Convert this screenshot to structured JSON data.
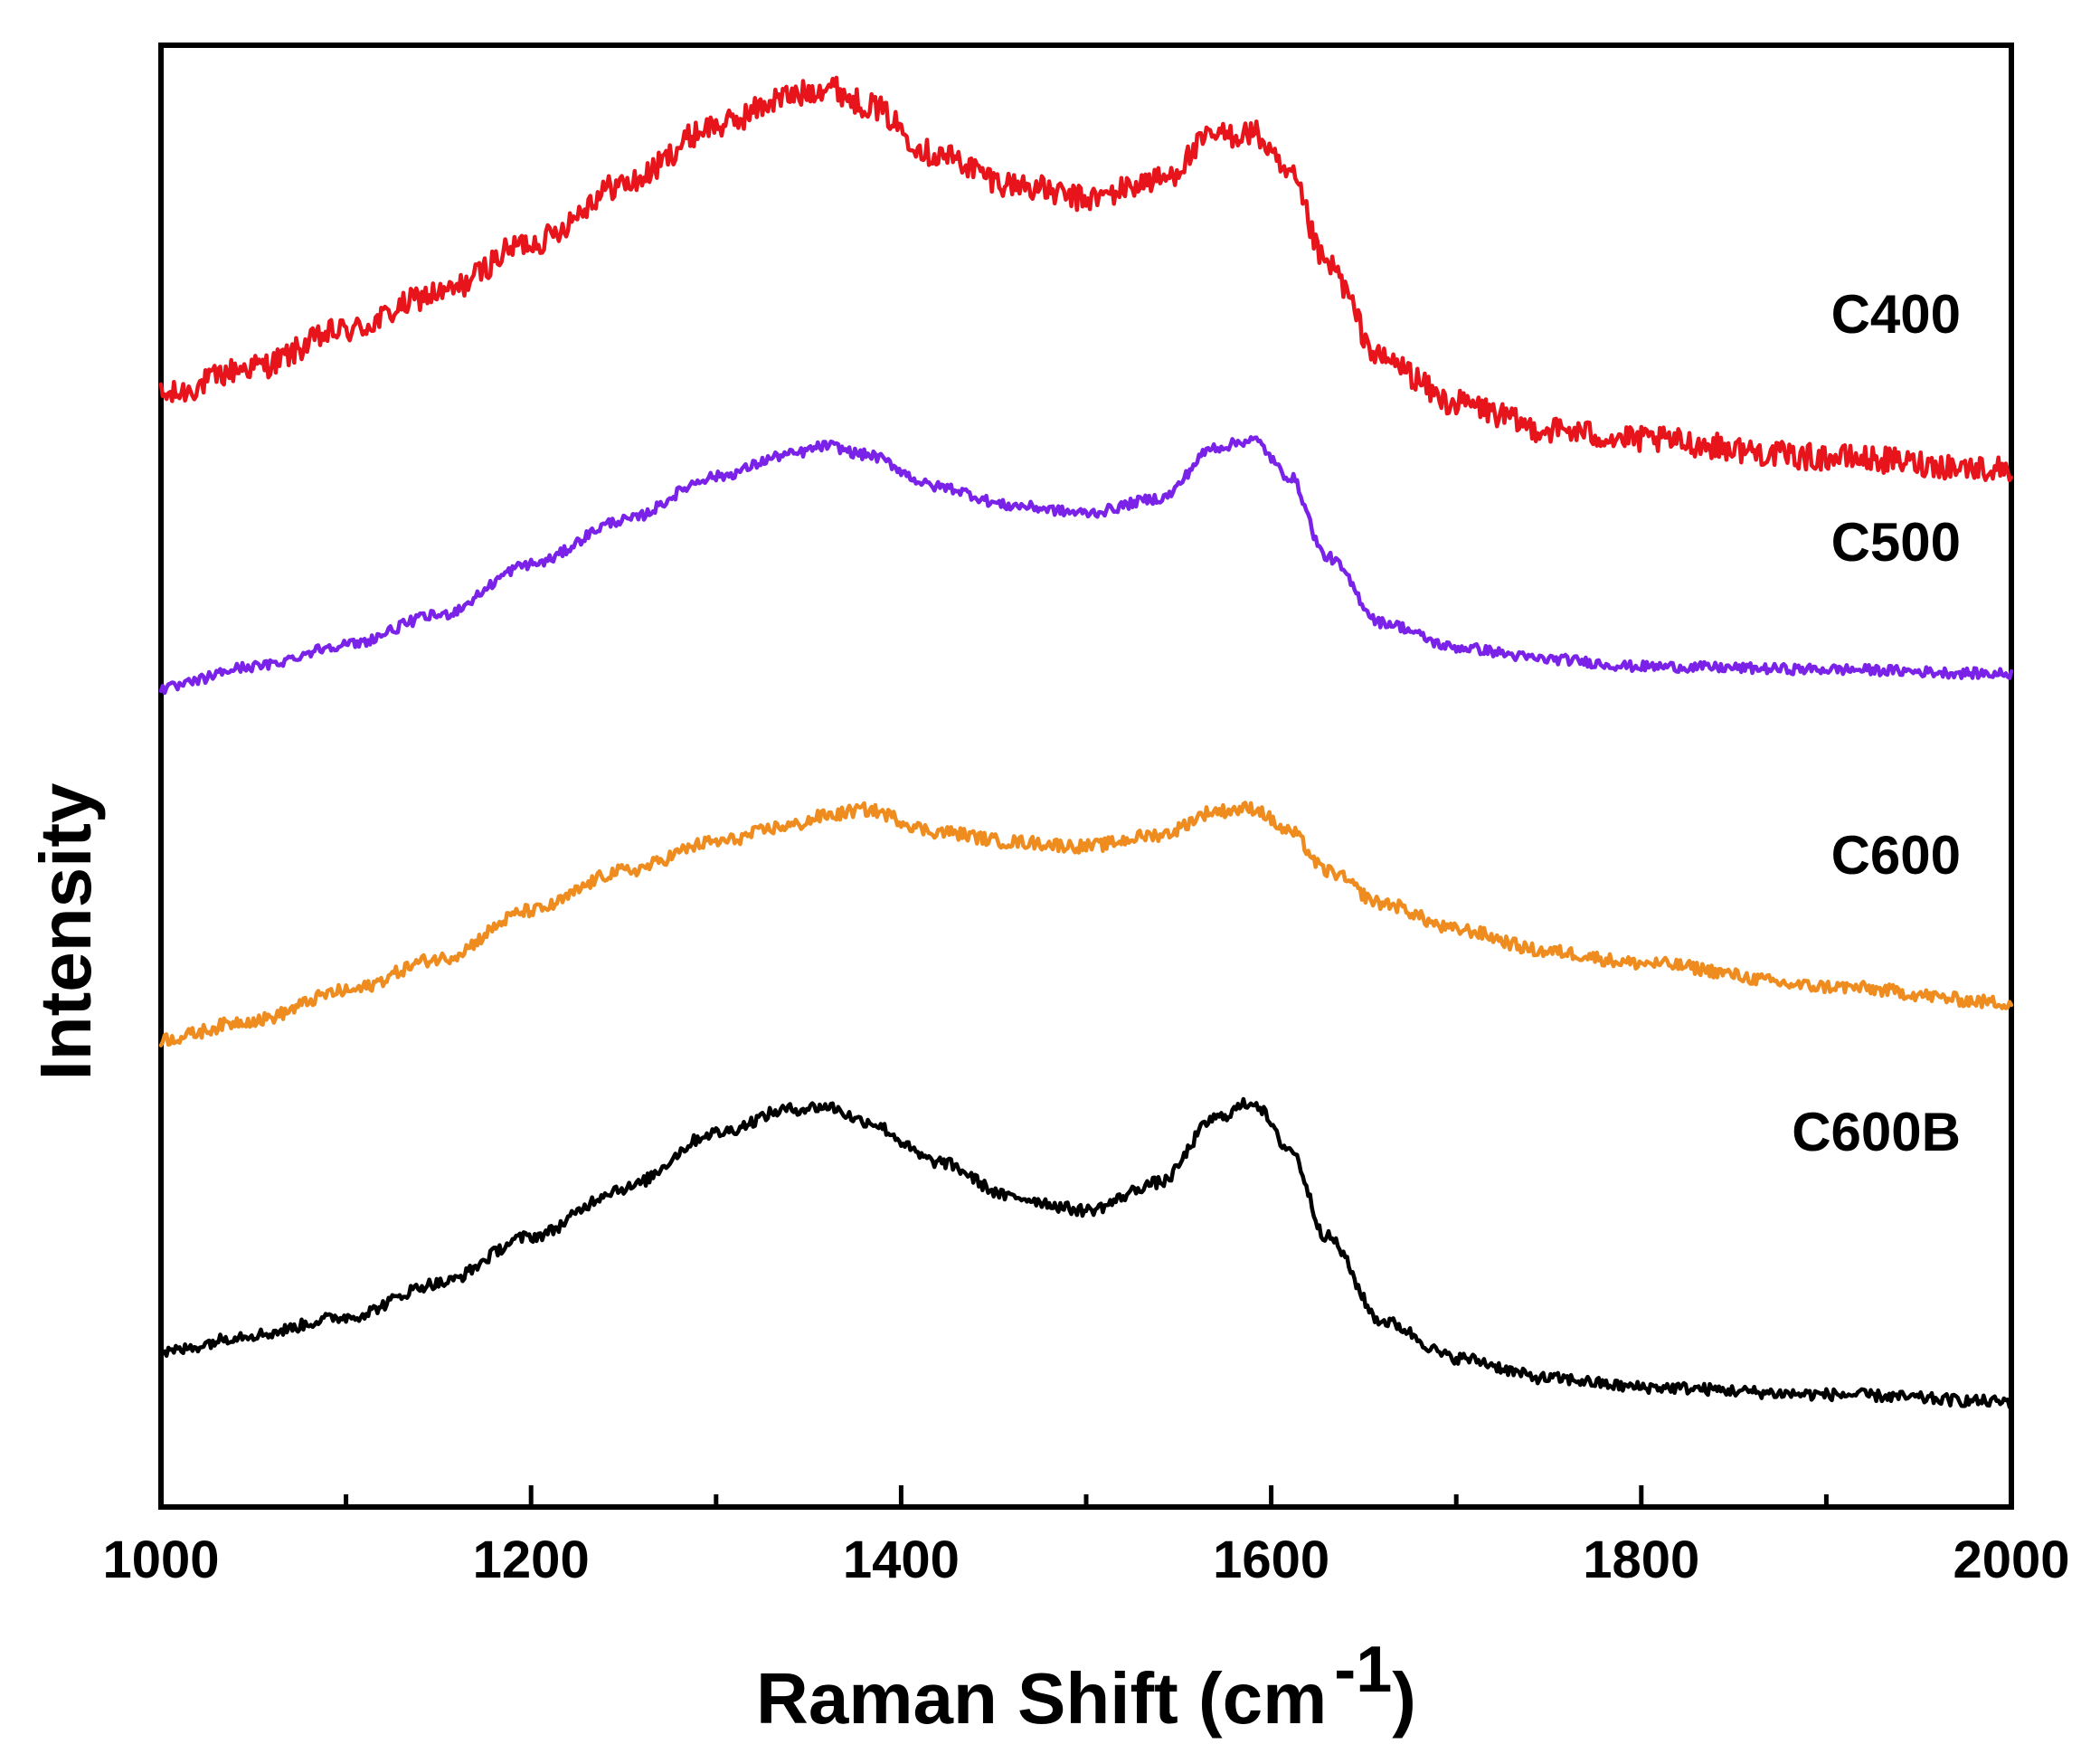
{
  "chart_data": {
    "type": "line",
    "title": "",
    "xlabel": "Raman Shift (cm",
    "xlabel_superscript": "-1",
    "xlabel_close": ")",
    "ylabel": "Intensity",
    "xlim": [
      1000,
      2000
    ],
    "ylim": [
      0,
      100
    ],
    "x_ticks": [
      1000,
      1200,
      1400,
      1600,
      1800,
      2000
    ],
    "x_tick_labels": [
      "1000",
      "1200",
      "1400",
      "1600",
      "1800",
      "2000"
    ],
    "y_ticks_shown": false,
    "grid": false,
    "legend": "none (inline labels at right)",
    "series": [
      {
        "name": "C400",
        "label": "C400",
        "color": "#e8141b",
        "x": [
          1000,
          1050,
          1100,
          1150,
          1200,
          1250,
          1300,
          1340,
          1360,
          1380,
          1420,
          1460,
          1500,
          1540,
          1570,
          1590,
          1610,
          1630,
          1660,
          1700,
          1750,
          1800,
          1900,
          2000
        ],
        "y": [
          76,
          78,
          80.5,
          83,
          86.5,
          90.5,
          94.5,
          96.5,
          97.2,
          96,
          92.5,
          90.5,
          89.5,
          90.8,
          93.8,
          94,
          91,
          85,
          78.5,
          75.5,
          73.7,
          73,
          71.8,
          71
        ]
      },
      {
        "name": "C500",
        "label": "C500",
        "color": "#7a22e8",
        "x": [
          1000,
          1050,
          1100,
          1150,
          1200,
          1250,
          1300,
          1340,
          1360,
          1380,
          1420,
          1460,
          1500,
          1540,
          1570,
          1590,
          1610,
          1630,
          1660,
          1700,
          1750,
          1800,
          1900,
          2000
        ],
        "y": [
          56,
          57.5,
          59,
          61,
          64.5,
          67.5,
          70.5,
          72,
          72.6,
          72,
          69.8,
          68.5,
          68,
          69,
          72.5,
          73,
          70.5,
          65,
          60.5,
          58.8,
          58,
          57.5,
          57.3,
          57
        ]
      },
      {
        "name": "C600",
        "label": "C600",
        "color": "#ef8c1f",
        "x": [
          1000,
          1050,
          1100,
          1150,
          1200,
          1250,
          1300,
          1340,
          1360,
          1380,
          1420,
          1460,
          1500,
          1540,
          1570,
          1590,
          1610,
          1630,
          1660,
          1700,
          1750,
          1800,
          1900,
          2000
        ],
        "y": [
          32,
          33.3,
          35.3,
          37.5,
          40.8,
          43.5,
          45.5,
          46.6,
          47.3,
          47.7,
          46.2,
          45.5,
          45.2,
          46,
          47.6,
          47.8,
          46.2,
          43.5,
          41.3,
          39.5,
          38,
          37.2,
          35.6,
          34.5
        ]
      },
      {
        "name": "C600B",
        "label": "C600B",
        "color": "#000000",
        "x": [
          1000,
          1050,
          1100,
          1150,
          1200,
          1250,
          1300,
          1340,
          1360,
          1380,
          1420,
          1460,
          1500,
          1540,
          1570,
          1590,
          1610,
          1630,
          1660,
          1700,
          1750,
          1800,
          1900,
          2000
        ],
        "y": [
          10.6,
          11.8,
          13,
          15.3,
          18.5,
          21.8,
          25.6,
          27.2,
          27.4,
          26.4,
          23.6,
          21.2,
          20.3,
          22.2,
          26.6,
          27.7,
          24.5,
          18.5,
          12.7,
          10.2,
          8.8,
          8.2,
          7.7,
          7.2
        ]
      }
    ]
  }
}
